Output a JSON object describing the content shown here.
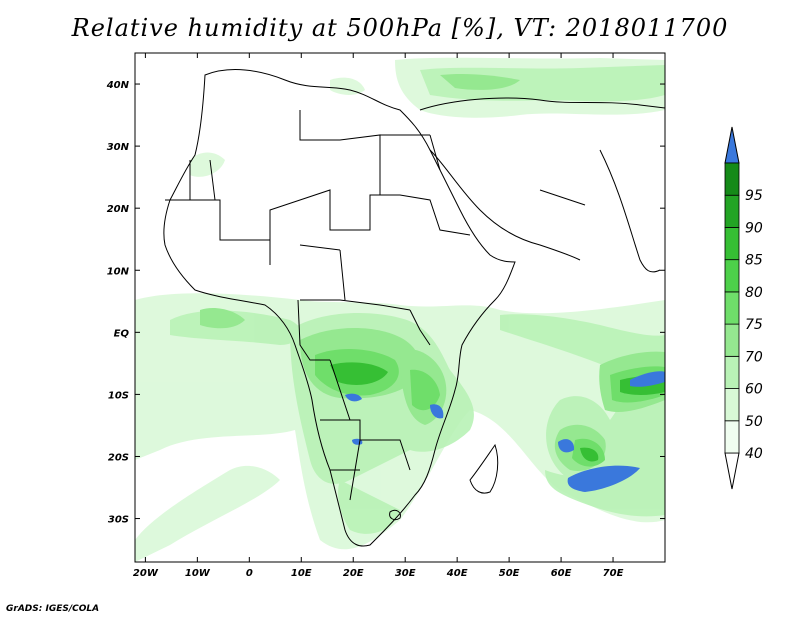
{
  "title": "Relative humidity at 500hPa [%], VT: 2018011700",
  "credit": "GrADS: IGES/COLA",
  "map": {
    "lon_range": [
      -22,
      80
    ],
    "lat_range": [
      -37,
      45
    ],
    "lon_ticks": [
      {
        "value": -20,
        "label": "20W"
      },
      {
        "value": -10,
        "label": "10W"
      },
      {
        "value": 0,
        "label": "0"
      },
      {
        "value": 10,
        "label": "10E"
      },
      {
        "value": 20,
        "label": "20E"
      },
      {
        "value": 30,
        "label": "30E"
      },
      {
        "value": 40,
        "label": "40E"
      },
      {
        "value": 50,
        "label": "50E"
      },
      {
        "value": 60,
        "label": "60E"
      },
      {
        "value": 70,
        "label": "70E"
      }
    ],
    "lat_ticks": [
      {
        "value": 40,
        "label": "40N"
      },
      {
        "value": 30,
        "label": "30N"
      },
      {
        "value": 20,
        "label": "20N"
      },
      {
        "value": 10,
        "label": "10N"
      },
      {
        "value": 0,
        "label": "EQ"
      },
      {
        "value": -10,
        "label": "10S"
      },
      {
        "value": -20,
        "label": "20S"
      },
      {
        "value": -30,
        "label": "30S"
      }
    ]
  },
  "colorbar": {
    "levels": [
      "40",
      "50",
      "60",
      "70",
      "75",
      "80",
      "85",
      "90",
      "95"
    ],
    "colors": [
      "#f0fdf0",
      "#d8f8d6",
      "#b9f2b6",
      "#95e890",
      "#6fde6a",
      "#4dd04a",
      "#36bf34",
      "#23a424",
      "#158a18"
    ],
    "over_color": "#3a78dc",
    "under_color": "#ffffff"
  }
}
